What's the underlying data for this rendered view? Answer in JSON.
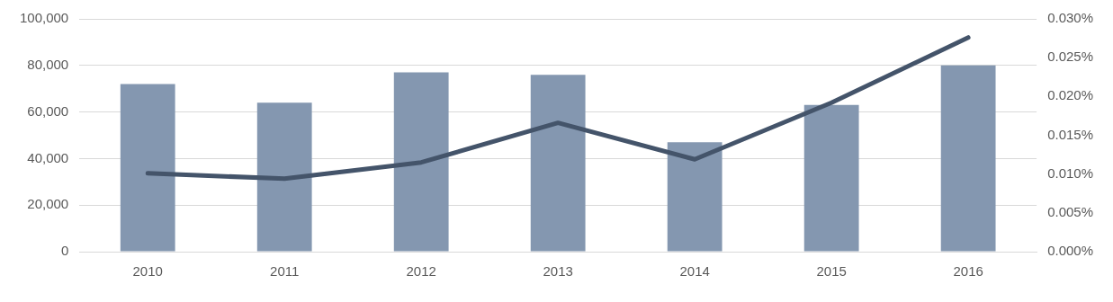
{
  "chart_data": {
    "type": "bar",
    "categories": [
      "2010",
      "2011",
      "2012",
      "2013",
      "2014",
      "2015",
      "2016"
    ],
    "series": [
      {
        "color": "#8497b0",
        "values": [
          72000,
          64000,
          77000,
          76000,
          47000,
          63000,
          80000
        ]
      },
      {
        "type": "line",
        "axis": "y2",
        "color": "#44546a",
        "values": [
          0.0101,
          0.0094,
          0.0115,
          0.0166,
          0.0119,
          0.0192,
          0.0276
        ]
      }
    ],
    "ylim": [
      0,
      100000
    ],
    "yticks": [
      {
        "value": 0,
        "label": "0"
      },
      {
        "value": 20000,
        "label": "20,000"
      },
      {
        "value": 40000,
        "label": "40,000"
      },
      {
        "value": 60000,
        "label": "60,000"
      },
      {
        "value": 80000,
        "label": "80,000"
      },
      {
        "value": 100000,
        "label": "100,000"
      }
    ],
    "y2lim": [
      0,
      0.03
    ],
    "y2ticks": [
      {
        "value": 0,
        "label": "0.000%"
      },
      {
        "value": 0.005,
        "label": "0.005%"
      },
      {
        "value": 0.01,
        "label": "0.010%"
      },
      {
        "value": 0.015,
        "label": "0.015%"
      },
      {
        "value": 0.02,
        "label": "0.020%"
      },
      {
        "value": 0.025,
        "label": "0.025%"
      },
      {
        "value": 0.03,
        "label": "0.030%"
      }
    ],
    "grid": "y",
    "legend": false,
    "marker": "none",
    "line_style": "solid"
  }
}
